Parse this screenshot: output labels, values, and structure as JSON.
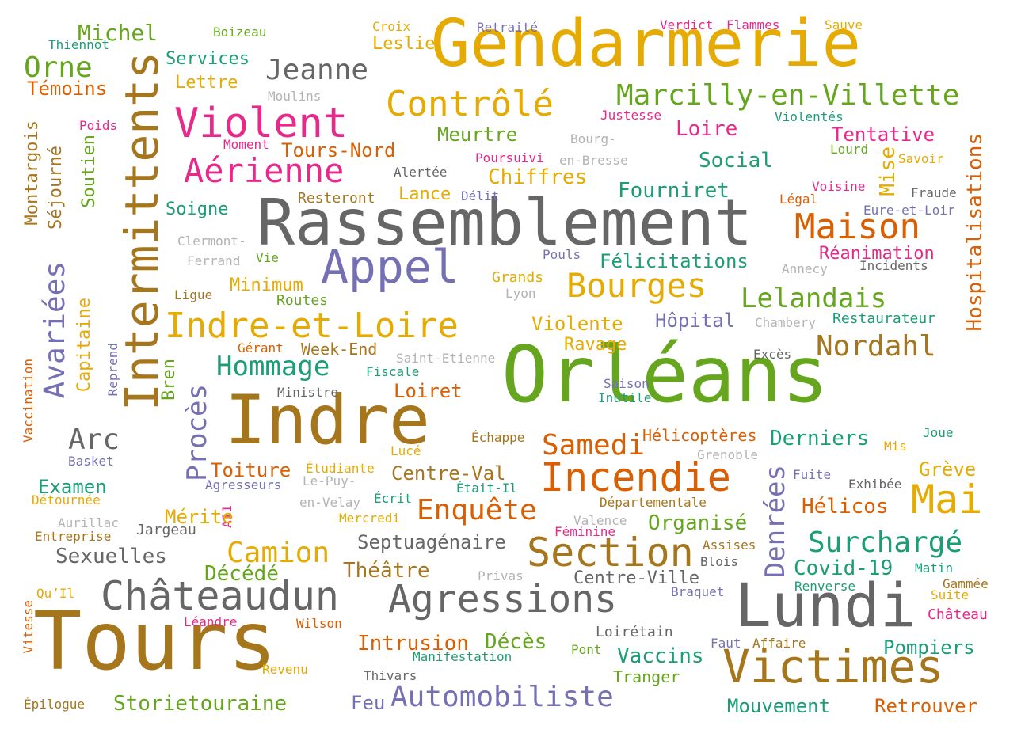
{
  "palette": {
    "green": "#66a61e",
    "gold": "#e6ab02",
    "bronze": "#a6761d",
    "gray": "#666666",
    "light_gray": "#b3b3b3",
    "orange": "#d95f02",
    "teal": "#1b9e77",
    "purple": "#7570b3",
    "magenta": "#e7298a"
  },
  "words": [
    {
      "id": "orleans",
      "text": "Orléans",
      "color": "green",
      "size": "xxxl"
    },
    {
      "id": "tours",
      "text": "Tours",
      "color": "bronze",
      "size": "xxxl"
    },
    {
      "id": "gendarmerie",
      "text": "Gendarmerie",
      "color": "gold",
      "size": "xxl"
    },
    {
      "id": "rassemblement",
      "text": "Rassemblement",
      "color": "gray",
      "size": "xxl"
    },
    {
      "id": "indre",
      "text": "Indre",
      "color": "bronze",
      "size": "xxl"
    },
    {
      "id": "intermittents",
      "text": "Intermittents",
      "color": "bronze",
      "size": "xl",
      "vertical": true
    },
    {
      "id": "lundi",
      "text": "Lundi",
      "color": "gray",
      "size": "xl"
    },
    {
      "id": "appel",
      "text": "Appel",
      "color": "purple",
      "size": "l"
    },
    {
      "id": "victimes",
      "text": "Victimes",
      "color": "bronze",
      "size": "l"
    },
    {
      "id": "agressions",
      "text": "Agressions",
      "color": "gray",
      "size": "l"
    },
    {
      "id": "chateaudun",
      "text": "Châteaudun",
      "color": "gray",
      "size": "l"
    },
    {
      "id": "section",
      "text": "Section",
      "color": "bronze",
      "size": "l"
    },
    {
      "id": "incendie",
      "text": "Incendie",
      "color": "orange",
      "size": "l"
    },
    {
      "id": "mai",
      "text": "Mai",
      "color": "gold",
      "size": "l"
    },
    {
      "id": "indre_et_loire",
      "text": "Indre-et-Loire",
      "color": "gold",
      "size": "m"
    },
    {
      "id": "violent",
      "text": "Violent",
      "color": "magenta",
      "size": "m"
    },
    {
      "id": "controle",
      "text": "Contrôlé",
      "color": "gold",
      "size": "m"
    },
    {
      "id": "maison",
      "text": "Maison",
      "color": "orange",
      "size": "m"
    },
    {
      "id": "bourges",
      "text": "Bourges",
      "color": "gold",
      "size": "m"
    },
    {
      "id": "aerienne",
      "text": "Aérienne",
      "color": "magenta",
      "size": "m"
    },
    {
      "id": "marcilly",
      "text": "Marcilly-en-Villette",
      "color": "green",
      "size": "m"
    },
    {
      "id": "jeanne",
      "text": "Jeanne",
      "color": "gray",
      "size": "m"
    },
    {
      "id": "orne",
      "text": "Orne",
      "color": "green",
      "size": "m"
    },
    {
      "id": "michel",
      "text": "Michel",
      "color": "green",
      "size": "s"
    },
    {
      "id": "temoins",
      "text": "Témoins",
      "color": "orange",
      "size": "s"
    },
    {
      "id": "services",
      "text": "Services",
      "color": "teal",
      "size": "s"
    },
    {
      "id": "lettre",
      "text": "Lettre",
      "color": "gold",
      "size": "s"
    },
    {
      "id": "leslie",
      "text": "Leslie",
      "color": "gold",
      "size": "s"
    },
    {
      "id": "moulins",
      "text": "Moulins",
      "color": "light_gray",
      "size": "xs"
    },
    {
      "id": "boizeau",
      "text": "Boizeau",
      "color": "green",
      "size": "xs"
    },
    {
      "id": "thiennot",
      "text": "Thiennot",
      "color": "teal",
      "size": "xs"
    },
    {
      "id": "croix",
      "text": "Croix",
      "color": "gold",
      "size": "xs"
    },
    {
      "id": "retraite",
      "text": "Retraité",
      "color": "purple",
      "size": "xs"
    },
    {
      "id": "verdict",
      "text": "Verdict",
      "color": "magenta",
      "size": "xs"
    },
    {
      "id": "flammes",
      "text": "Flammes",
      "color": "magenta",
      "size": "xs"
    },
    {
      "id": "sauve",
      "text": "Sauve",
      "color": "gold",
      "size": "xs"
    },
    {
      "id": "justesse",
      "text": "Justesse",
      "color": "magenta",
      "size": "xs"
    },
    {
      "id": "violentes",
      "text": "Violentés",
      "color": "teal",
      "size": "xs"
    },
    {
      "id": "loire",
      "text": "Loire",
      "color": "magenta",
      "size": "s"
    },
    {
      "id": "tentative",
      "text": "Tentative",
      "color": "magenta",
      "size": "s"
    },
    {
      "id": "lourd",
      "text": "Lourd",
      "color": "green",
      "size": "xs"
    },
    {
      "id": "savoir",
      "text": "Savoir",
      "color": "gold",
      "size": "xs"
    },
    {
      "id": "mise",
      "text": "Mise",
      "color": "gold",
      "size": "s",
      "vertical": true
    },
    {
      "id": "hospitalisations",
      "text": "Hospitalisations",
      "color": "orange",
      "size": "s",
      "vertical": true
    },
    {
      "id": "social",
      "text": "Social",
      "color": "teal",
      "size": "s"
    },
    {
      "id": "meurtre",
      "text": "Meurtre",
      "color": "green",
      "size": "s"
    },
    {
      "id": "bourg",
      "text": "Bourg-",
      "color": "light_gray",
      "size": "xs"
    },
    {
      "id": "en_bresse",
      "text": "en-Bresse",
      "color": "light_gray",
      "size": "xs"
    },
    {
      "id": "poursuivi",
      "text": "Poursuivi",
      "color": "magenta",
      "size": "xs"
    },
    {
      "id": "alertee",
      "text": "Alertée",
      "color": "gray",
      "size": "xs"
    },
    {
      "id": "tours_nord",
      "text": "Tours-Nord",
      "color": "orange",
      "size": "s"
    },
    {
      "id": "moment",
      "text": "Moment",
      "color": "magenta",
      "size": "xs"
    },
    {
      "id": "poids",
      "text": "Poids",
      "color": "magenta",
      "size": "xs"
    },
    {
      "id": "chiffres",
      "text": "Chiffres",
      "color": "gold",
      "size": "s"
    },
    {
      "id": "lance",
      "text": "Lance",
      "color": "gold",
      "size": "s"
    },
    {
      "id": "delit",
      "text": "Délit",
      "color": "purple",
      "size": "xs"
    },
    {
      "id": "fourniret",
      "text": "Fourniret",
      "color": "teal",
      "size": "s"
    },
    {
      "id": "voisine",
      "text": "Voisine",
      "color": "magenta",
      "size": "xs"
    },
    {
      "id": "fraude",
      "text": "Fraude",
      "color": "gray",
      "size": "xs"
    },
    {
      "id": "legal",
      "text": "Légal",
      "color": "orange",
      "size": "xs"
    },
    {
      "id": "eure_et_loir",
      "text": "Eure-et-Loir",
      "color": "purple",
      "size": "xs"
    },
    {
      "id": "resteront",
      "text": "Resteront",
      "color": "bronze",
      "size": "xs"
    },
    {
      "id": "soigne",
      "text": "Soigne",
      "color": "teal",
      "size": "s"
    },
    {
      "id": "montargois",
      "text": "Montargois",
      "color": "bronze",
      "size": "s",
      "vertical": true
    },
    {
      "id": "sejourne",
      "text": "Séjourné",
      "color": "bronze",
      "size": "s",
      "vertical": true
    },
    {
      "id": "soutien",
      "text": "Soutien",
      "color": "green",
      "size": "s",
      "vertical": true
    },
    {
      "id": "clermont",
      "text": "Clermont-",
      "color": "light_gray",
      "size": "xs"
    },
    {
      "id": "ferrand",
      "text": "Ferrand",
      "color": "light_gray",
      "size": "xs"
    },
    {
      "id": "vie",
      "text": "Vie",
      "color": "green",
      "size": "xs"
    },
    {
      "id": "pouls",
      "text": "Pouls",
      "color": "purple",
      "size": "xs"
    },
    {
      "id": "felicitations",
      "text": "Félicitations",
      "color": "teal",
      "size": "s"
    },
    {
      "id": "reanimation",
      "text": "Réanimation",
      "color": "magenta",
      "size": "s"
    },
    {
      "id": "annecy",
      "text": "Annecy",
      "color": "light_gray",
      "size": "xs"
    },
    {
      "id": "incidents",
      "text": "Incidents",
      "color": "gray",
      "size": "xs"
    },
    {
      "id": "avariees",
      "text": "Avariées",
      "color": "purple",
      "size": "m",
      "vertical": true
    },
    {
      "id": "minimum",
      "text": "Minimum",
      "color": "gold",
      "size": "s"
    },
    {
      "id": "grands",
      "text": "Grands",
      "color": "gold",
      "size": "xs"
    },
    {
      "id": "lyon",
      "text": "Lyon",
      "color": "light_gray",
      "size": "xs"
    },
    {
      "id": "ligue",
      "text": "Ligue",
      "color": "bronze",
      "size": "xs"
    },
    {
      "id": "routes",
      "text": "Routes",
      "color": "green",
      "size": "xs"
    },
    {
      "id": "lelandais",
      "text": "Lelandais",
      "color": "green",
      "size": "m"
    },
    {
      "id": "capitaine",
      "text": "Capitaine",
      "color": "gold",
      "size": "s",
      "vertical": true
    },
    {
      "id": "violente",
      "text": "Violente",
      "color": "gold",
      "size": "s"
    },
    {
      "id": "hopital",
      "text": "Hôpital",
      "color": "purple",
      "size": "s"
    },
    {
      "id": "chambery",
      "text": "Chambery",
      "color": "light_gray",
      "size": "xs"
    },
    {
      "id": "restaurateur",
      "text": "Restaurateur",
      "color": "teal",
      "size": "xs"
    },
    {
      "id": "reprend",
      "text": "Reprend",
      "color": "purple",
      "size": "xs",
      "vertical": true
    },
    {
      "id": "bren",
      "text": "Bren",
      "color": "green",
      "size": "s",
      "vertical": true
    },
    {
      "id": "gerant",
      "text": "Gérant",
      "color": "orange",
      "size": "xs"
    },
    {
      "id": "week_end",
      "text": "Week-End",
      "color": "bronze",
      "size": "s"
    },
    {
      "id": "ravage",
      "text": "Ravage",
      "color": "gold",
      "size": "s"
    },
    {
      "id": "nordahl",
      "text": "Nordahl",
      "color": "bronze",
      "size": "m"
    },
    {
      "id": "exces",
      "text": "Excès",
      "color": "gray",
      "size": "xs"
    },
    {
      "id": "hommage",
      "text": "Hommage",
      "color": "teal",
      "size": "m"
    },
    {
      "id": "saint_etienne",
      "text": "Saint-Etienne",
      "color": "light_gray",
      "size": "xs"
    },
    {
      "id": "fiscale",
      "text": "Fiscale",
      "color": "teal",
      "size": "xs"
    },
    {
      "id": "vaccination",
      "text": "Vaccination",
      "color": "orange",
      "size": "xs",
      "vertical": true
    },
    {
      "id": "proces",
      "text": "Procès",
      "color": "purple",
      "size": "m",
      "vertical": true
    },
    {
      "id": "ministre",
      "text": "Ministre",
      "color": "gray",
      "size": "xs"
    },
    {
      "id": "loiret",
      "text": "Loiret",
      "color": "orange",
      "size": "s"
    },
    {
      "id": "saison",
      "text": "Saison",
      "color": "purple",
      "size": "xs"
    },
    {
      "id": "inutile",
      "text": "Inutile",
      "color": "teal",
      "size": "xs"
    },
    {
      "id": "arc",
      "text": "Arc",
      "color": "gray",
      "size": "m"
    },
    {
      "id": "basket",
      "text": "Basket",
      "color": "purple",
      "size": "xs"
    },
    {
      "id": "echappe",
      "text": "Échappe",
      "color": "bronze",
      "size": "xs"
    },
    {
      "id": "samedi",
      "text": "Samedi",
      "color": "orange",
      "size": "m"
    },
    {
      "id": "helicopteres",
      "text": "Hélicoptères",
      "color": "orange",
      "size": "s"
    },
    {
      "id": "derniers",
      "text": "Derniers",
      "color": "teal",
      "size": "s"
    },
    {
      "id": "joue",
      "text": "Joue",
      "color": "teal",
      "size": "xs"
    },
    {
      "id": "mis",
      "text": "Mis",
      "color": "gold",
      "size": "xs"
    },
    {
      "id": "luce",
      "text": "Lucé",
      "color": "gold",
      "size": "xs"
    },
    {
      "id": "grenoble",
      "text": "Grenoble",
      "color": "light_gray",
      "size": "xs"
    },
    {
      "id": "toiture",
      "text": "Toiture",
      "color": "orange",
      "size": "s"
    },
    {
      "id": "etudiante",
      "text": "Étudiante",
      "color": "gold",
      "size": "xs"
    },
    {
      "id": "centre_val",
      "text": "Centre-Val",
      "color": "bronze",
      "size": "s"
    },
    {
      "id": "greve",
      "text": "Grève",
      "color": "gold",
      "size": "s"
    },
    {
      "id": "denrees",
      "text": "Denrées",
      "color": "purple",
      "size": "m",
      "vertical": true
    },
    {
      "id": "fuite",
      "text": "Fuite",
      "color": "purple",
      "size": "xs"
    },
    {
      "id": "exhibee",
      "text": "Exhibée",
      "color": "gray",
      "size": "xs"
    },
    {
      "id": "examen",
      "text": "Examen",
      "color": "teal",
      "size": "s"
    },
    {
      "id": "agresseurs",
      "text": "Agresseurs",
      "color": "purple",
      "size": "xs"
    },
    {
      "id": "le_puy",
      "text": "Le-Puy-",
      "color": "light_gray",
      "size": "xs"
    },
    {
      "id": "etait_il",
      "text": "Était-Il",
      "color": "teal",
      "size": "xs"
    },
    {
      "id": "detournee",
      "text": "Détournée",
      "color": "gold",
      "size": "xs"
    },
    {
      "id": "en_velay",
      "text": "en-Velay",
      "color": "light_gray",
      "size": "xs"
    },
    {
      "id": "ecrit",
      "text": "Écrit",
      "color": "teal",
      "size": "xs"
    },
    {
      "id": "departementale",
      "text": "Départementale",
      "color": "bronze",
      "size": "xs"
    },
    {
      "id": "helicos",
      "text": "Hélicos",
      "color": "orange",
      "size": "s"
    },
    {
      "id": "a11",
      "text": "A11",
      "color": "magenta",
      "size": "xs",
      "vertical": true
    },
    {
      "id": "enquete",
      "text": "Enquête",
      "color": "orange",
      "size": "m"
    },
    {
      "id": "merite",
      "text": "Mérite",
      "color": "gold",
      "size": "s"
    },
    {
      "id": "aurillac",
      "text": "Aurillac",
      "color": "light_gray",
      "size": "xs"
    },
    {
      "id": "mercredi",
      "text": "Mercredi",
      "color": "gold",
      "size": "xs"
    },
    {
      "id": "valence",
      "text": "Valence",
      "color": "light_gray",
      "size": "xs"
    },
    {
      "id": "organise",
      "text": "Organisé",
      "color": "green",
      "size": "s"
    },
    {
      "id": "jargeau",
      "text": "Jargeau",
      "color": "gray",
      "size": "xs"
    },
    {
      "id": "feminine",
      "text": "Féminine",
      "color": "magenta",
      "size": "xs"
    },
    {
      "id": "entreprise",
      "text": "Entreprise",
      "color": "bronze",
      "size": "xs"
    },
    {
      "id": "septuagenaire",
      "text": "Septuagénaire",
      "color": "gray",
      "size": "s"
    },
    {
      "id": "assises",
      "text": "Assises",
      "color": "bronze",
      "size": "xs"
    },
    {
      "id": "surcharge",
      "text": "Surchargé",
      "color": "teal",
      "size": "m"
    },
    {
      "id": "camion",
      "text": "Camion",
      "color": "gold",
      "size": "m"
    },
    {
      "id": "blois",
      "text": "Blois",
      "color": "gray",
      "size": "xs"
    },
    {
      "id": "sexuelles",
      "text": "Sexuelles",
      "color": "gray",
      "size": "s"
    },
    {
      "id": "privas",
      "text": "Privas",
      "color": "light_gray",
      "size": "xs"
    },
    {
      "id": "theatre",
      "text": "Théâtre",
      "color": "bronze",
      "size": "s"
    },
    {
      "id": "covid",
      "text": "Covid-19",
      "color": "teal",
      "size": "s"
    },
    {
      "id": "matin",
      "text": "Matin",
      "color": "teal",
      "size": "xs"
    },
    {
      "id": "decede",
      "text": "Décédé",
      "color": "green",
      "size": "s"
    },
    {
      "id": "centre_ville",
      "text": "Centre-Ville",
      "color": "gray",
      "size": "s"
    },
    {
      "id": "gammee",
      "text": "Gammée",
      "color": "bronze",
      "size": "xs"
    },
    {
      "id": "quil",
      "text": "Qu’Il",
      "color": "gold",
      "size": "xs"
    },
    {
      "id": "braquet",
      "text": "Braquet",
      "color": "purple",
      "size": "xs"
    },
    {
      "id": "renverse",
      "text": "Renverse",
      "color": "teal",
      "size": "xs"
    },
    {
      "id": "suite",
      "text": "Suite",
      "color": "gold",
      "size": "xs"
    },
    {
      "id": "vitesse",
      "text": "Vitesse",
      "color": "orange",
      "size": "xs",
      "vertical": true
    },
    {
      "id": "chateau",
      "text": "Château",
      "color": "magenta",
      "size": "xs"
    },
    {
      "id": "leandre",
      "text": "Léandre",
      "color": "magenta",
      "size": "xs"
    },
    {
      "id": "wilson",
      "text": "Wilson",
      "color": "orange",
      "size": "xs"
    },
    {
      "id": "loiretain",
      "text": "Loirétain",
      "color": "gray",
      "size": "xs"
    },
    {
      "id": "intrusion",
      "text": "Intrusion",
      "color": "orange",
      "size": "s"
    },
    {
      "id": "deces",
      "text": "Décès",
      "color": "green",
      "size": "s"
    },
    {
      "id": "faut",
      "text": "Faut",
      "color": "purple",
      "size": "xs"
    },
    {
      "id": "affaire",
      "text": "Affaire",
      "color": "bronze",
      "size": "xs"
    },
    {
      "id": "pompiers",
      "text": "Pompiers",
      "color": "teal",
      "size": "s"
    },
    {
      "id": "pont",
      "text": "Pont",
      "color": "green",
      "size": "xs"
    },
    {
      "id": "manifestation",
      "text": "Manifestation",
      "color": "teal",
      "size": "xs"
    },
    {
      "id": "vaccins",
      "text": "Vaccins",
      "color": "teal",
      "size": "s"
    },
    {
      "id": "revenu",
      "text": "Revenu",
      "color": "gold",
      "size": "xs"
    },
    {
      "id": "thivars",
      "text": "Thivars",
      "color": "gray",
      "size": "xs"
    },
    {
      "id": "tranger",
      "text": "Tranger",
      "color": "green",
      "size": "xs"
    },
    {
      "id": "storietouraine",
      "text": "Storietouraine",
      "color": "green",
      "size": "s"
    },
    {
      "id": "feu",
      "text": "Feu",
      "color": "purple",
      "size": "s"
    },
    {
      "id": "automobiliste",
      "text": "Automobiliste",
      "color": "purple",
      "size": "m"
    },
    {
      "id": "mouvement",
      "text": "Mouvement",
      "color": "teal",
      "size": "s"
    },
    {
      "id": "retrouver",
      "text": "Retrouver",
      "color": "orange",
      "size": "s"
    },
    {
      "id": "epilogue",
      "text": "Épilogue",
      "color": "bronze",
      "size": "xs"
    }
  ]
}
